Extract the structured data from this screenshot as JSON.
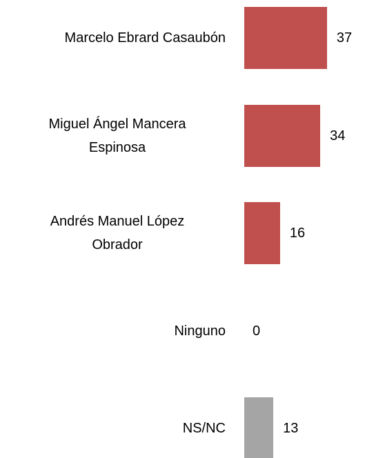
{
  "chart_data": {
    "type": "bar",
    "orientation": "horizontal",
    "categories": [
      "Marcelo Ebrard Casaubón",
      "Miguel Ángel Mancera\nEspinosa",
      "Andrés Manuel López\nObrador",
      "Ninguno",
      "NS/NC"
    ],
    "values": [
      37,
      34,
      16,
      0,
      13
    ],
    "colors": [
      "#c0504d",
      "#c0504d",
      "#c0504d",
      "#c0504d",
      "#a5a5a5"
    ]
  }
}
